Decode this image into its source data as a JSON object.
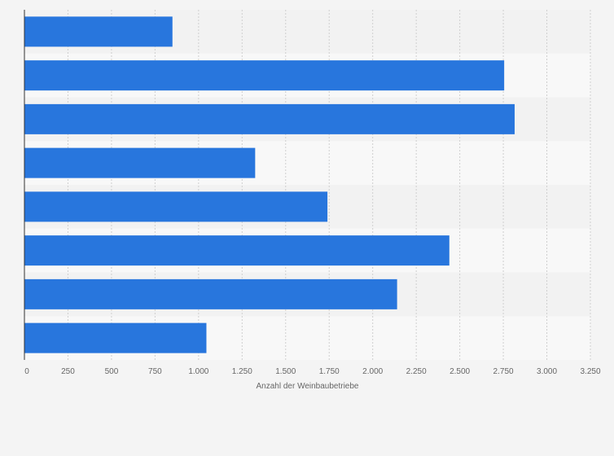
{
  "colors": {
    "background": "#f4f4f4",
    "band_light": "#f8f8f8",
    "band_dark": "#f2f2f2",
    "bar": "#2876dd",
    "grid": "#cfcfcf",
    "axis": "#333333",
    "tick_text": "#666666"
  },
  "chart_data": {
    "type": "bar",
    "orientation": "horizontal",
    "categories": [
      "",
      "",
      "",
      "",
      "",
      "",
      "",
      ""
    ],
    "values": [
      850,
      2755,
      2815,
      1325,
      1740,
      2440,
      2140,
      1045
    ],
    "title": "",
    "xlabel": "Anzahl der Weinbaubetriebe",
    "ylabel": "",
    "xlim": [
      0,
      3250
    ],
    "xticks": [
      0,
      250,
      500,
      750,
      1000,
      1250,
      1500,
      1750,
      2000,
      2250,
      2500,
      2750,
      3000,
      3250
    ],
    "xtick_labels": [
      "0",
      "250",
      "500",
      "750",
      "1.000",
      "1.250",
      "1.500",
      "1.750",
      "2.000",
      "2.250",
      "2.500",
      "2.750",
      "3.000",
      "3.250"
    ],
    "grid": true,
    "legend": "none"
  }
}
